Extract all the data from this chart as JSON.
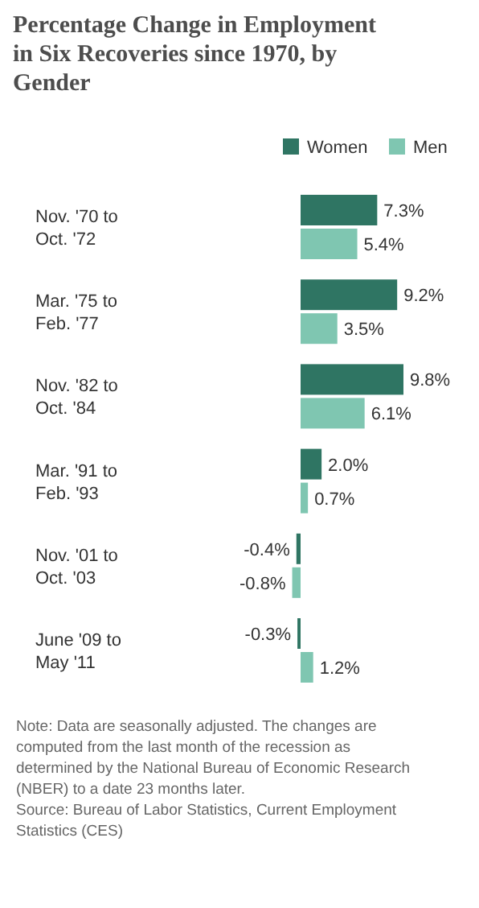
{
  "chart_data": {
    "type": "bar",
    "orientation": "horizontal",
    "title": "Percentage Change in Employment in Six Recoveries since 1970, by Gender",
    "categories": [
      "Nov. '70 to Oct. '72",
      "Mar. '75 to Feb. '77",
      "Nov. '82 to Oct. '84",
      "Mar. '91 to Feb. '93",
      "Nov. '01 to Oct. '03",
      "June '09 to May '11"
    ],
    "series": [
      {
        "name": "Women",
        "color": "#2f7563",
        "values": [
          7.3,
          9.2,
          9.8,
          2.0,
          -0.4,
          -0.3
        ],
        "value_labels": [
          "7.3%",
          "9.2%",
          "9.8%",
          "2.0%",
          "-0.4%",
          "-0.3%"
        ]
      },
      {
        "name": "Men",
        "color": "#7fc6b1",
        "values": [
          5.4,
          3.5,
          6.1,
          0.7,
          -0.8,
          1.2
        ],
        "value_labels": [
          "5.4%",
          "3.5%",
          "6.1%",
          "0.7%",
          "-0.8%",
          "1.2%"
        ]
      }
    ],
    "legend": "top right",
    "annotations": [
      "Note: Data are seasonally adjusted. The changes are computed from the last month of the recession as determined by the National Bureau of Economic Research (NBER) to a date 23 months later.",
      "Source: Bureau of Labor Statistics, Current Employment Statistics (CES)"
    ]
  }
}
